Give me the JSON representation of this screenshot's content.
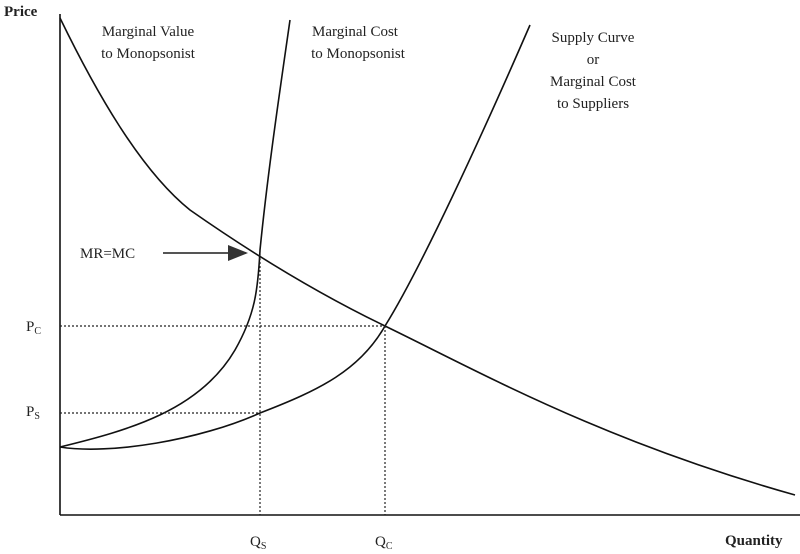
{
  "axes": {
    "y_label": "Price",
    "x_label": "Quantity"
  },
  "curves": [
    {
      "label_lines": [
        "Marginal Value",
        "to Monopsonist"
      ]
    },
    {
      "label_lines": [
        "Marginal Cost",
        "to Monopsonist"
      ]
    },
    {
      "label_lines": [
        "Supply Curve",
        "or",
        "Marginal Cost",
        "to Suppliers"
      ]
    }
  ],
  "annotation": "MR=MC",
  "price_levels": [
    {
      "symbol": "P",
      "subscript": "C"
    },
    {
      "symbol": "P",
      "subscript": "S"
    }
  ],
  "quantity_levels": [
    {
      "symbol": "Q",
      "subscript": "S"
    },
    {
      "symbol": "Q",
      "subscript": "C"
    }
  ]
}
